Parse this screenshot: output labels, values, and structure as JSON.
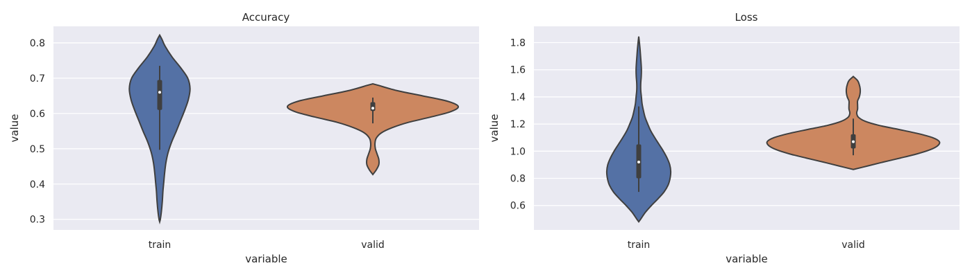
{
  "colors": {
    "train": "#5471a5",
    "valid": "#cc8760",
    "outline": "#3f3f3f",
    "inner_box": "#3f3f3f",
    "median": "#ffffff",
    "panel_bg": "#eaeaf2",
    "grid": "#ffffff"
  },
  "chart_data": [
    {
      "type": "violin",
      "title": "Accuracy",
      "xlabel": "variable",
      "ylabel": "value",
      "ylim": [
        0.27,
        0.847
      ],
      "yticks": [
        0.3,
        0.4,
        0.5,
        0.6,
        0.7,
        0.8
      ],
      "ytick_labels": [
        "0.3",
        "0.4",
        "0.5",
        "0.6",
        "0.7",
        "0.8"
      ],
      "categories": [
        "train",
        "valid"
      ],
      "grid": true,
      "violins": [
        {
          "category": "train",
          "box": {
            "q1": 0.61,
            "median": 0.66,
            "q3": 0.695,
            "whisker_low": 0.497,
            "whisker_high": 0.735
          },
          "density": [
            [
              0.293,
              0.0
            ],
            [
              0.3,
              0.02
            ],
            [
              0.32,
              0.05
            ],
            [
              0.35,
              0.08
            ],
            [
              0.38,
              0.1
            ],
            [
              0.4,
              0.12
            ],
            [
              0.43,
              0.15
            ],
            [
              0.46,
              0.19
            ],
            [
              0.49,
              0.26
            ],
            [
              0.52,
              0.37
            ],
            [
              0.55,
              0.51
            ],
            [
              0.58,
              0.64
            ],
            [
              0.61,
              0.77
            ],
            [
              0.64,
              0.88
            ],
            [
              0.67,
              0.93
            ],
            [
              0.7,
              0.86
            ],
            [
              0.73,
              0.64
            ],
            [
              0.76,
              0.38
            ],
            [
              0.79,
              0.17
            ],
            [
              0.81,
              0.07
            ],
            [
              0.822,
              0.0
            ]
          ]
        },
        {
          "category": "valid",
          "box": {
            "q1": 0.607,
            "median": 0.615,
            "q3": 0.632,
            "whisker_low": 0.572,
            "whisker_high": 0.645
          },
          "density": [
            [
              0.427,
              0.0
            ],
            [
              0.44,
              0.04
            ],
            [
              0.455,
              0.07
            ],
            [
              0.47,
              0.07
            ],
            [
              0.485,
              0.05
            ],
            [
              0.5,
              0.03
            ],
            [
              0.515,
              0.025
            ],
            [
              0.53,
              0.04
            ],
            [
              0.545,
              0.1
            ],
            [
              0.56,
              0.23
            ],
            [
              0.575,
              0.42
            ],
            [
              0.59,
              0.68
            ],
            [
              0.605,
              0.91
            ],
            [
              0.62,
              1.0
            ],
            [
              0.635,
              0.87
            ],
            [
              0.65,
              0.58
            ],
            [
              0.665,
              0.28
            ],
            [
              0.68,
              0.06
            ],
            [
              0.684,
              0.0
            ]
          ]
        }
      ]
    },
    {
      "type": "violin",
      "title": "Loss",
      "xlabel": "variable",
      "ylabel": "value",
      "ylim": [
        0.42,
        1.92
      ],
      "yticks": [
        0.6,
        0.8,
        1.0,
        1.2,
        1.4,
        1.6,
        1.8
      ],
      "ytick_labels": [
        "0.6",
        "0.8",
        "1.0",
        "1.2",
        "1.4",
        "1.6",
        "1.8"
      ],
      "categories": [
        "train",
        "valid"
      ],
      "grid": true,
      "violins": [
        {
          "category": "train",
          "box": {
            "q1": 0.8,
            "median": 0.92,
            "q3": 1.05,
            "whisker_low": 0.7,
            "whisker_high": 1.33
          },
          "density": [
            [
              0.48,
              0.0
            ],
            [
              0.5,
              0.06
            ],
            [
              0.55,
              0.2
            ],
            [
              0.6,
              0.38
            ],
            [
              0.65,
              0.58
            ],
            [
              0.7,
              0.76
            ],
            [
              0.75,
              0.88
            ],
            [
              0.8,
              0.94
            ],
            [
              0.85,
              0.96
            ],
            [
              0.9,
              0.93
            ],
            [
              0.95,
              0.85
            ],
            [
              1.0,
              0.74
            ],
            [
              1.05,
              0.61
            ],
            [
              1.1,
              0.48
            ],
            [
              1.15,
              0.36
            ],
            [
              1.2,
              0.27
            ],
            [
              1.25,
              0.19
            ],
            [
              1.3,
              0.14
            ],
            [
              1.35,
              0.1
            ],
            [
              1.4,
              0.08
            ],
            [
              1.45,
              0.06
            ],
            [
              1.5,
              0.06
            ],
            [
              1.55,
              0.075
            ],
            [
              1.6,
              0.08
            ],
            [
              1.65,
              0.07
            ],
            [
              1.7,
              0.055
            ],
            [
              1.75,
              0.04
            ],
            [
              1.8,
              0.02
            ],
            [
              1.845,
              0.0
            ]
          ]
        },
        {
          "category": "valid",
          "box": {
            "q1": 1.02,
            "median": 1.07,
            "q3": 1.125,
            "whisker_low": 0.97,
            "whisker_high": 1.24
          },
          "density": [
            [
              0.865,
              0.0
            ],
            [
              0.89,
              0.16
            ],
            [
              0.92,
              0.35
            ],
            [
              0.95,
              0.55
            ],
            [
              0.98,
              0.74
            ],
            [
              1.01,
              0.89
            ],
            [
              1.04,
              0.98
            ],
            [
              1.07,
              1.0
            ],
            [
              1.1,
              0.92
            ],
            [
              1.13,
              0.75
            ],
            [
              1.16,
              0.53
            ],
            [
              1.19,
              0.3
            ],
            [
              1.22,
              0.14
            ],
            [
              1.25,
              0.06
            ],
            [
              1.28,
              0.04
            ],
            [
              1.31,
              0.05
            ],
            [
              1.34,
              0.05
            ],
            [
              1.37,
              0.05
            ],
            [
              1.4,
              0.07
            ],
            [
              1.43,
              0.08
            ],
            [
              1.46,
              0.08
            ],
            [
              1.49,
              0.07
            ],
            [
              1.52,
              0.05
            ],
            [
              1.55,
              0.0
            ]
          ]
        }
      ]
    }
  ]
}
